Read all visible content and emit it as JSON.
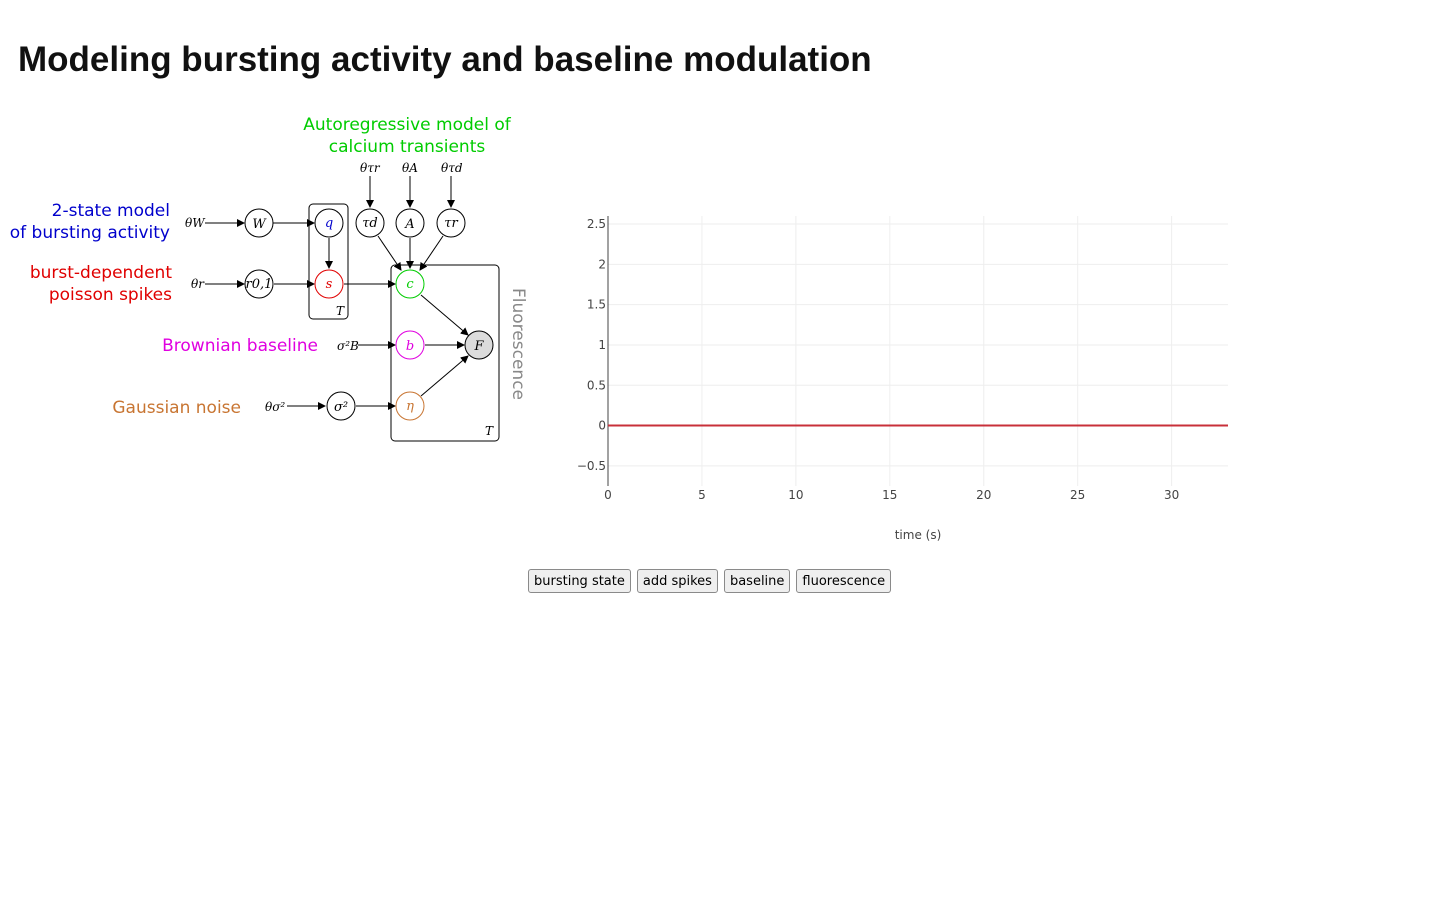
{
  "page": {
    "title": "Modeling bursting activity and baseline modulation"
  },
  "model": {
    "labels": {
      "autoregressive_line1": "Autoregressive model of",
      "autoregressive_line2": "calcium transients",
      "two_state_line1": "2-state model",
      "two_state_line2": "of bursting activity",
      "burst_line1": "burst-dependent",
      "burst_line2": "poisson spikes",
      "brownian": "Brownian baseline",
      "gaussian": "Gaussian noise",
      "fluorescence": "Fluorescence"
    },
    "colors": {
      "autoregressive": "#00cc00",
      "two_state": "#0000cc",
      "burst": "#e00000",
      "brownian": "#e000e0",
      "gaussian": "#c87532",
      "fluorescence": "#888888"
    },
    "nodes": {
      "W": "W",
      "q": "q",
      "r": "r0,1",
      "s": "s",
      "tau_d": "τd",
      "A": "A",
      "tau_r": "τr",
      "c": "c",
      "b": "b",
      "F": "F",
      "sigma2": "σ²",
      "eta": "η"
    },
    "params": {
      "theta_W": "θW",
      "theta_r": "θr",
      "theta_tau_r": "θτr",
      "theta_A": "θA",
      "theta_tau_d": "θτd",
      "sigma_B": "σ²B",
      "theta_sigma": "θσ²"
    },
    "plate_labels": {
      "left": "T",
      "right": "T"
    }
  },
  "chart_data": {
    "type": "line",
    "xlabel": "time (s)",
    "ylabel": "",
    "xlim": [
      0,
      33
    ],
    "ylim": [
      -0.75,
      2.6
    ],
    "x_ticks": [
      0,
      5,
      10,
      15,
      20,
      25,
      30
    ],
    "x_tick_labels": [
      "0",
      "5",
      "10",
      "15",
      "20",
      "25",
      "30"
    ],
    "y_ticks": [
      -0.5,
      0,
      0.5,
      1,
      1.5,
      2,
      2.5
    ],
    "y_tick_labels": [
      "−0.5",
      "0",
      "0.5",
      "1",
      "1.5",
      "2",
      "2.5"
    ],
    "grid": true,
    "series": [
      {
        "x": [
          0,
          33
        ],
        "y": [
          0,
          0
        ],
        "color": "#c8303a"
      }
    ]
  },
  "buttons": {
    "bursting_state": "bursting state",
    "add_spikes": "add spikes",
    "baseline": "baseline",
    "fluorescence": "fluorescence"
  }
}
